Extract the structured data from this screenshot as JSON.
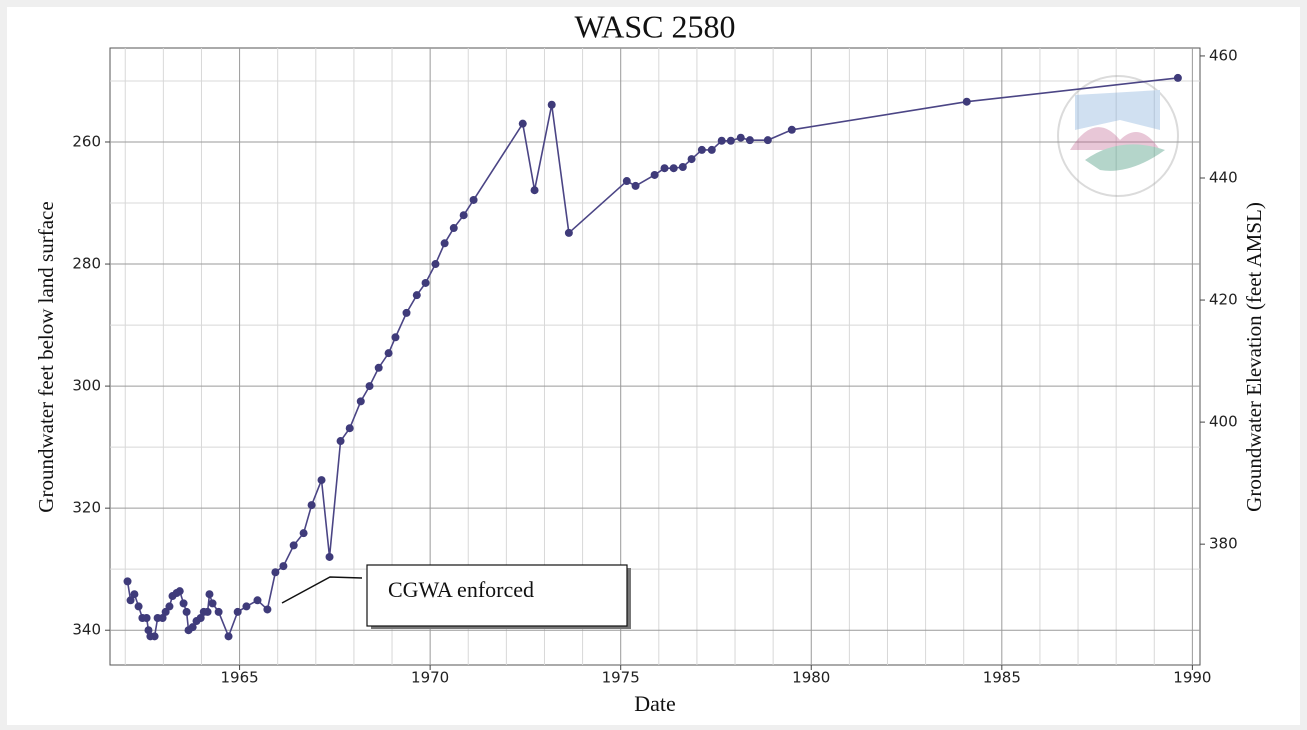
{
  "chart_data": {
    "type": "line",
    "title": "WASC 2580",
    "xlabel": "Date",
    "ylabel": "Groundwater feet below land surface",
    "y2label": "Groundwater Elevation (feet AMSL)",
    "annotation": "CGWA enforced",
    "color": "#4b4585",
    "marker_color": "#3f3b7a",
    "grid": true,
    "y_inverted": true,
    "xlim": [
      1961.6,
      1990.2
    ],
    "xticks": [
      1965,
      1970,
      1975,
      1980,
      1985,
      1990
    ],
    "xminorticks": [
      1962,
      1963,
      1964,
      1966,
      1967,
      1968,
      1969,
      1971,
      1972,
      1973,
      1974,
      1976,
      1977,
      1978,
      1979,
      1981,
      1982,
      1983,
      1984,
      1986,
      1987,
      1988,
      1989
    ],
    "ylim": [
      244.6,
      345.7
    ],
    "yticks": [
      260,
      280,
      300,
      320,
      340
    ],
    "yminorticks": [
      250,
      270,
      290,
      310,
      330
    ],
    "y2lim": [
      360.2,
      461.3
    ],
    "y2ticks": [
      380,
      400,
      420,
      440,
      460
    ],
    "x": [
      1962.06,
      1962.14,
      1962.24,
      1962.35,
      1962.45,
      1962.56,
      1962.61,
      1962.66,
      1962.77,
      1962.85,
      1962.98,
      1963.06,
      1963.16,
      1963.24,
      1963.35,
      1963.43,
      1963.53,
      1963.61,
      1963.66,
      1963.77,
      1963.87,
      1963.98,
      1964.06,
      1964.16,
      1964.21,
      1964.29,
      1964.45,
      1964.71,
      1964.95,
      1965.18,
      1965.47,
      1965.73,
      1965.94,
      1966.15,
      1966.42,
      1966.68,
      1966.89,
      1967.15,
      1967.36,
      1967.65,
      1967.89,
      1968.18,
      1968.41,
      1968.65,
      1968.91,
      1969.09,
      1969.38,
      1969.65,
      1969.88,
      1970.14,
      1970.38,
      1970.62,
      1970.88,
      1971.14,
      1972.43,
      1972.74,
      1973.19,
      1973.64,
      1975.16,
      1975.39,
      1975.89,
      1976.15,
      1976.39,
      1976.63,
      1976.86,
      1977.13,
      1977.39,
      1977.65,
      1977.89,
      1978.15,
      1978.39,
      1978.86,
      1979.49,
      1984.08,
      1989.62
    ],
    "values": [
      332.0,
      335.1,
      334.1,
      336.1,
      338.0,
      338.0,
      340.0,
      341.0,
      341.0,
      338.0,
      338.0,
      337.0,
      336.1,
      334.4,
      333.9,
      333.6,
      335.6,
      337.0,
      340.0,
      339.5,
      338.5,
      338.0,
      337.0,
      337.0,
      334.1,
      335.6,
      337.0,
      341.0,
      337.0,
      336.1,
      335.1,
      336.6,
      330.5,
      329.5,
      326.1,
      324.1,
      319.5,
      315.4,
      328.0,
      309.0,
      306.9,
      302.5,
      300.0,
      297.0,
      294.6,
      292.0,
      288.0,
      285.1,
      283.1,
      280.0,
      276.6,
      274.1,
      272.0,
      269.5,
      257.0,
      267.9,
      253.9,
      274.9,
      266.4,
      267.2,
      265.4,
      264.3,
      264.3,
      264.1,
      262.8,
      261.3,
      261.3,
      259.8,
      259.8,
      259.3,
      259.7,
      259.7,
      258.0,
      253.4,
      249.5
    ]
  }
}
